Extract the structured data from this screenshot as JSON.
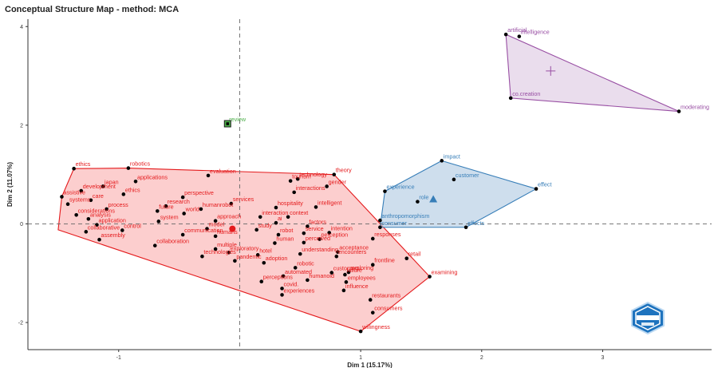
{
  "chart_data": {
    "type": "scatter",
    "title": "Conceptual Structure Map - method: MCA",
    "xlabel": "Dim 1 (15.17%)",
    "ylabel": "Dim 2 (11.07%)",
    "xlim": [
      -1.75,
      3.9
    ],
    "ylim": [
      -2.55,
      4.15
    ],
    "xticks": [
      {
        "v": -1,
        "label": "-1"
      },
      {
        "v": 1,
        "label": "1"
      },
      {
        "v": 2,
        "label": "2"
      },
      {
        "v": 3,
        "label": "3"
      }
    ],
    "yticks": [
      {
        "v": 4,
        "label": "4"
      },
      {
        "v": 2,
        "label": "2"
      },
      {
        "v": 0,
        "label": "0"
      },
      {
        "v": -2,
        "label": "-2"
      }
    ],
    "grid": false,
    "clusters": [
      {
        "color": "#e41a1c",
        "fill": "#fbb4b4",
        "centroid_marker": "circle",
        "centroid": [
          -0.06,
          -0.1
        ],
        "hull": [
          [
            -1.37,
            1.12
          ],
          [
            -0.92,
            1.13
          ],
          [
            0.78,
            1.0
          ],
          [
            1.57,
            -1.07
          ],
          [
            1.0,
            -2.18
          ],
          [
            -1.5,
            -0.12
          ],
          [
            -1.47,
            0.55
          ]
        ],
        "points": [
          {
            "label": "robotics",
            "x": -0.92,
            "y": 1.13
          },
          {
            "label": "ethics",
            "x": -1.37,
            "y": 1.12
          },
          {
            "label": "assistive",
            "x": -1.47,
            "y": 0.55
          },
          {
            "label": "japan",
            "x": -1.13,
            "y": 0.76
          },
          {
            "label": "development",
            "x": -1.31,
            "y": 0.67
          },
          {
            "label": "applications",
            "x": -0.86,
            "y": 0.86
          },
          {
            "label": "evaluation",
            "x": -0.26,
            "y": 0.98
          },
          {
            "label": "technology",
            "x": 0.48,
            "y": 0.91
          },
          {
            "label": "theory",
            "x": 0.78,
            "y": 1.0
          },
          {
            "label": "tourism",
            "x": 0.42,
            "y": 0.87
          },
          {
            "label": "gender",
            "x": 0.72,
            "y": 0.76
          },
          {
            "label": "ethics",
            "x": -0.96,
            "y": 0.6
          },
          {
            "label": "care",
            "x": -1.23,
            "y": 0.48
          },
          {
            "label": "perspective",
            "x": -0.47,
            "y": 0.54
          },
          {
            "label": "interactions",
            "x": 0.45,
            "y": 0.64
          },
          {
            "label": "systems",
            "x": -1.42,
            "y": 0.4
          },
          {
            "label": "research",
            "x": -0.61,
            "y": 0.36
          },
          {
            "label": "process",
            "x": -1.1,
            "y": 0.3
          },
          {
            "label": "services",
            "x": -0.07,
            "y": 0.41
          },
          {
            "label": "hospitality",
            "x": 0.3,
            "y": 0.33
          },
          {
            "label": "intelligent",
            "x": 0.63,
            "y": 0.34
          },
          {
            "label": "future",
            "x": -0.68,
            "y": 0.26
          },
          {
            "label": "humanrobot",
            "x": -0.32,
            "y": 0.3
          },
          {
            "label": "considerations",
            "x": -1.35,
            "y": 0.18
          },
          {
            "label": "analysis",
            "x": -1.25,
            "y": 0.1
          },
          {
            "label": "world",
            "x": -0.46,
            "y": 0.21
          },
          {
            "label": "interaction",
            "x": 0.17,
            "y": 0.14
          },
          {
            "label": "context",
            "x": 0.4,
            "y": 0.14
          },
          {
            "label": "system",
            "x": -0.67,
            "y": 0.05
          },
          {
            "label": "approach",
            "x": -0.2,
            "y": 0.06
          },
          {
            "label": "ai",
            "x": 0.3,
            "y": 0.02
          },
          {
            "label": "factors",
            "x": 0.56,
            "y": -0.05
          },
          {
            "label": "application",
            "x": -1.18,
            "y": -0.02
          },
          {
            "label": "model",
            "x": -0.27,
            "y": -0.1
          },
          {
            "label": "study",
            "x": 0.14,
            "y": -0.12
          },
          {
            "label": "robot",
            "x": 0.32,
            "y": -0.22
          },
          {
            "label": "service",
            "x": 0.53,
            "y": -0.19
          },
          {
            "label": "intention",
            "x": 0.74,
            "y": -0.18
          },
          {
            "label": "collaborative",
            "x": -1.27,
            "y": -0.16
          },
          {
            "label": "control",
            "x": -0.97,
            "y": -0.13
          },
          {
            "label": "communication",
            "x": -0.47,
            "y": -0.22
          },
          {
            "label": "humans",
            "x": -0.2,
            "y": -0.25
          },
          {
            "label": "perception",
            "x": 0.66,
            "y": -0.31
          },
          {
            "label": "responses",
            "x": 1.1,
            "y": -0.3
          },
          {
            "label": "assembly",
            "x": -1.16,
            "y": -0.32
          },
          {
            "label": "human",
            "x": 0.29,
            "y": -0.39
          },
          {
            "label": "perceived",
            "x": 0.53,
            "y": -0.38
          },
          {
            "label": "collaboration",
            "x": -0.7,
            "y": -0.44
          },
          {
            "label": "multiple",
            "x": -0.2,
            "y": -0.51
          },
          {
            "label": "exploratory",
            "x": -0.09,
            "y": -0.58
          },
          {
            "label": "hotel",
            "x": 0.15,
            "y": -0.63
          },
          {
            "label": "understanding",
            "x": 0.5,
            "y": -0.61
          },
          {
            "label": "acceptance",
            "x": 0.81,
            "y": -0.57
          },
          {
            "label": "retail",
            "x": 1.38,
            "y": -0.7
          },
          {
            "label": "technologies",
            "x": -0.31,
            "y": -0.66
          },
          {
            "label": "encounters",
            "x": 0.8,
            "y": -0.66
          },
          {
            "label": "pandemic",
            "x": -0.04,
            "y": -0.75
          },
          {
            "label": "adoption",
            "x": 0.2,
            "y": -0.79
          },
          {
            "label": "robotic",
            "x": 0.46,
            "y": -0.89
          },
          {
            "label": "frontline",
            "x": 1.1,
            "y": -0.83
          },
          {
            "label": "customers",
            "x": 0.76,
            "y": -0.99
          },
          {
            "label": "failure",
            "x": 0.87,
            "y": -1.03
          },
          {
            "label": "examining",
            "x": 1.57,
            "y": -1.07
          },
          {
            "label": "exploring",
            "x": 0.9,
            "y": -0.98
          },
          {
            "label": "automated",
            "x": 0.36,
            "y": -1.06
          },
          {
            "label": "perceptions",
            "x": 0.18,
            "y": -1.17
          },
          {
            "label": "employees",
            "x": 0.88,
            "y": -1.18
          },
          {
            "label": "humanoid",
            "x": 0.56,
            "y": -1.14
          },
          {
            "label": "covid.",
            "x": 0.35,
            "y": -1.31
          },
          {
            "label": "experiences",
            "x": 0.35,
            "y": -1.44
          },
          {
            "label": "influence",
            "x": 0.86,
            "y": -1.35
          },
          {
            "label": "restaurants",
            "x": 1.08,
            "y": -1.54
          },
          {
            "label": "consumers",
            "x": 1.1,
            "y": -1.8
          },
          {
            "label": "willingness",
            "x": 1.0,
            "y": -2.18
          }
        ]
      },
      {
        "color": "#4daf4a",
        "fill": "#b2dfab",
        "centroid_marker": "square",
        "centroid": [
          -0.1,
          2.03
        ],
        "hull": [],
        "points": [
          {
            "label": "review",
            "x": -0.1,
            "y": 2.03
          }
        ]
      },
      {
        "color": "#377eb8",
        "fill": "#b3cde3",
        "centroid_marker": "triangle",
        "centroid": [
          1.6,
          0.5
        ],
        "hull": [
          [
            1.67,
            1.28
          ],
          [
            2.45,
            0.71
          ],
          [
            1.87,
            -0.07
          ],
          [
            1.16,
            -0.07
          ],
          [
            1.2,
            0.66
          ]
        ],
        "points": [
          {
            "label": "impact",
            "x": 1.67,
            "y": 1.28
          },
          {
            "label": "effect",
            "x": 2.45,
            "y": 0.71
          },
          {
            "label": "experience",
            "x": 1.2,
            "y": 0.66
          },
          {
            "label": "customer",
            "x": 1.77,
            "y": 0.9
          },
          {
            "label": "role",
            "x": 1.47,
            "y": 0.45
          },
          {
            "label": "anthropomorphism",
            "x": 1.16,
            "y": 0.07
          },
          {
            "label": "effects",
            "x": 1.87,
            "y": -0.07
          },
          {
            "label": "consumer",
            "x": 1.16,
            "y": -0.07
          }
        ]
      },
      {
        "color": "#984ea3",
        "fill": "#decbe4",
        "centroid_marker": "cross",
        "centroid": [
          2.57,
          3.1
        ],
        "hull": [
          [
            2.2,
            3.84
          ],
          [
            3.63,
            2.28
          ],
          [
            2.24,
            2.55
          ]
        ],
        "points": [
          {
            "label": "artificial",
            "x": 2.2,
            "y": 3.84
          },
          {
            "label": "intelligence",
            "x": 2.31,
            "y": 3.8
          },
          {
            "label": "co.creation",
            "x": 2.24,
            "y": 2.55
          },
          {
            "label": "moderating",
            "x": 3.63,
            "y": 2.28
          }
        ]
      }
    ]
  },
  "logo": {
    "text": "BIBLIOMETRIX"
  }
}
